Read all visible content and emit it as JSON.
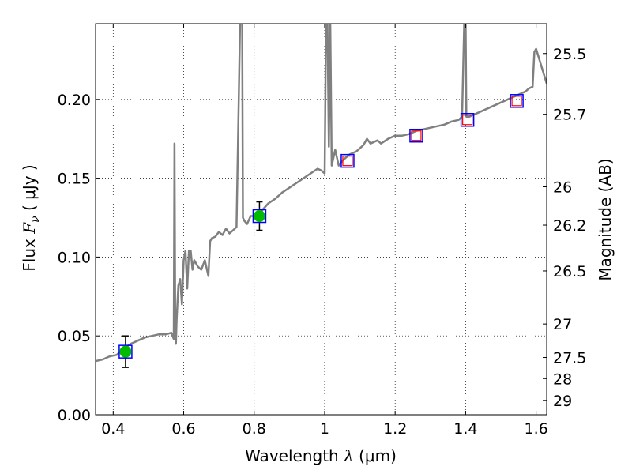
{
  "chart_data": {
    "type": "line",
    "xlabel_prefix": "Wavelength  ",
    "xlabel_symbol": "λ",
    "xlabel_unit": " (μm)",
    "ylabel_prefix": "Flux  ",
    "ylabel_symbol": "F",
    "ylabel_subscript": "ν",
    "ylabel_unit": "  ( μJy )",
    "y2label": "Magnitude (AB)",
    "xlim": [
      0.35,
      1.63
    ],
    "ylim": [
      0.0,
      0.248
    ],
    "grid": true,
    "x_ticks": [
      {
        "value": 0.4,
        "label": "0.4"
      },
      {
        "value": 0.6,
        "label": "0.6"
      },
      {
        "value": 0.8,
        "label": "0.8"
      },
      {
        "value": 1.0,
        "label": "1"
      },
      {
        "value": 1.2,
        "label": "1.2"
      },
      {
        "value": 1.4,
        "label": "1.4"
      },
      {
        "value": 1.6,
        "label": "1.6"
      }
    ],
    "y_ticks": [
      {
        "value": 0.0,
        "label": "0.00"
      },
      {
        "value": 0.05,
        "label": "0.05"
      },
      {
        "value": 0.1,
        "label": "0.10"
      },
      {
        "value": 0.15,
        "label": "0.15"
      },
      {
        "value": 0.2,
        "label": "0.20"
      }
    ],
    "y2_ticks": [
      {
        "value": 25.5,
        "label": "25.5"
      },
      {
        "value": 25.7,
        "label": "25.7"
      },
      {
        "value": 26.0,
        "label": "26"
      },
      {
        "value": 26.2,
        "label": "26.2"
      },
      {
        "value": 26.5,
        "label": "26.5"
      },
      {
        "value": 27.0,
        "label": "27"
      },
      {
        "value": 27.5,
        "label": "27.5"
      },
      {
        "value": 28.0,
        "label": "28"
      },
      {
        "value": 29.0,
        "label": "29"
      }
    ],
    "series": [
      {
        "kind": "model-spectrum",
        "color": "#808080",
        "x": [
          0.35,
          0.37,
          0.39,
          0.41,
          0.43,
          0.45,
          0.47,
          0.49,
          0.51,
          0.53,
          0.55,
          0.565,
          0.572,
          0.574,
          0.576,
          0.578,
          0.58,
          0.585,
          0.59,
          0.595,
          0.6,
          0.605,
          0.61,
          0.615,
          0.62,
          0.625,
          0.63,
          0.64,
          0.65,
          0.66,
          0.67,
          0.675,
          0.68,
          0.69,
          0.7,
          0.71,
          0.72,
          0.73,
          0.74,
          0.75,
          0.76,
          0.764,
          0.766,
          0.768,
          0.772,
          0.78,
          0.79,
          0.8,
          0.82,
          0.84,
          0.86,
          0.88,
          0.9,
          0.92,
          0.94,
          0.96,
          0.98,
          0.99,
          1.0,
          1.004,
          1.006,
          1.008,
          1.012,
          1.016,
          1.02,
          1.03,
          1.04,
          1.05,
          1.06,
          1.07,
          1.08,
          1.09,
          1.1,
          1.11,
          1.12,
          1.13,
          1.14,
          1.15,
          1.16,
          1.18,
          1.2,
          1.22,
          1.24,
          1.26,
          1.28,
          1.3,
          1.32,
          1.34,
          1.36,
          1.38,
          1.39,
          1.396,
          1.398,
          1.4,
          1.402,
          1.41,
          1.43,
          1.45,
          1.47,
          1.49,
          1.51,
          1.53,
          1.55,
          1.57,
          1.58,
          1.59,
          1.595,
          1.6,
          1.63
        ],
        "y": [
          0.034,
          0.035,
          0.037,
          0.038,
          0.042,
          0.045,
          0.047,
          0.049,
          0.05,
          0.051,
          0.051,
          0.052,
          0.048,
          0.172,
          0.06,
          0.045,
          0.06,
          0.082,
          0.086,
          0.07,
          0.098,
          0.104,
          0.08,
          0.104,
          0.104,
          0.092,
          0.098,
          0.094,
          0.092,
          0.098,
          0.088,
          0.11,
          0.112,
          0.113,
          0.116,
          0.114,
          0.118,
          0.115,
          0.117,
          0.119,
          0.248,
          0.248,
          0.248,
          0.125,
          0.123,
          0.121,
          0.126,
          0.126,
          0.129,
          0.134,
          0.137,
          0.141,
          0.144,
          0.147,
          0.15,
          0.153,
          0.156,
          0.155,
          0.153,
          0.248,
          0.248,
          0.248,
          0.17,
          0.248,
          0.158,
          0.168,
          0.158,
          0.161,
          0.163,
          0.165,
          0.166,
          0.167,
          0.169,
          0.171,
          0.175,
          0.172,
          0.173,
          0.174,
          0.172,
          0.175,
          0.177,
          0.177,
          0.178,
          0.18,
          0.181,
          0.182,
          0.183,
          0.184,
          0.186,
          0.187,
          0.189,
          0.248,
          0.248,
          0.248,
          0.189,
          0.189,
          0.191,
          0.193,
          0.195,
          0.197,
          0.199,
          0.201,
          0.203,
          0.205,
          0.207,
          0.208,
          0.23,
          0.232,
          0.21
        ]
      },
      {
        "kind": "detections",
        "color": "#00bb00",
        "edgecolor": "#0000ff",
        "points": [
          {
            "x": 0.435,
            "y": 0.04,
            "err": 0.01
          },
          {
            "x": 0.815,
            "y": 0.126,
            "err": 0.009
          }
        ]
      },
      {
        "kind": "model-photometry",
        "color": "#0000ff",
        "points": [
          {
            "x": 0.435,
            "y": 0.04
          },
          {
            "x": 0.815,
            "y": 0.126
          },
          {
            "x": 1.065,
            "y": 0.161
          },
          {
            "x": 1.26,
            "y": 0.177
          },
          {
            "x": 1.405,
            "y": 0.187
          },
          {
            "x": 1.545,
            "y": 0.199
          }
        ]
      },
      {
        "kind": "upper-limits",
        "color": "#ff0000",
        "points": [
          {
            "x": 1.065,
            "y": 0.161
          },
          {
            "x": 1.26,
            "y": 0.177
          },
          {
            "x": 1.405,
            "y": 0.187
          },
          {
            "x": 1.545,
            "y": 0.199
          }
        ]
      }
    ]
  }
}
